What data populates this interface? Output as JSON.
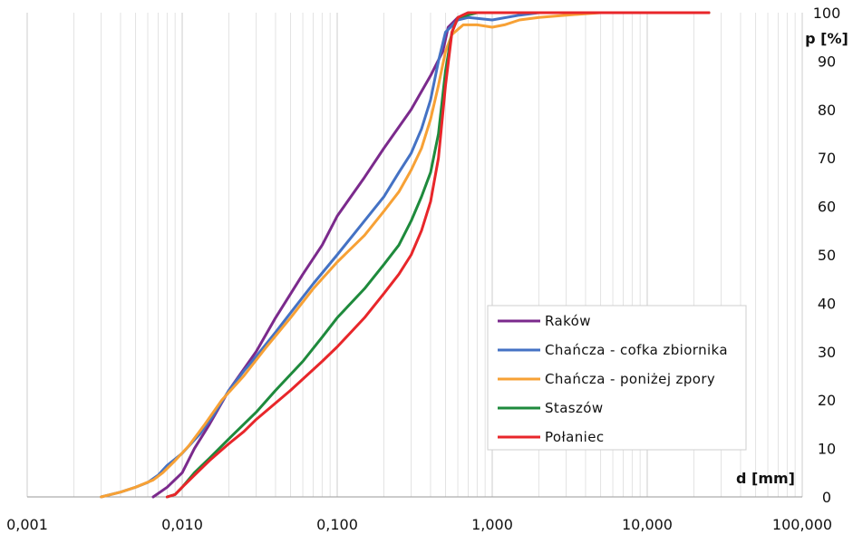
{
  "chart_data": {
    "type": "line",
    "x_scale": "log",
    "xlim": [
      0.001,
      100
    ],
    "ylim": [
      0,
      100
    ],
    "x_ticks": [
      {
        "value": 0.001,
        "label": "0,001"
      },
      {
        "value": 0.01,
        "label": "0,010"
      },
      {
        "value": 0.1,
        "label": "0,100"
      },
      {
        "value": 1,
        "label": "1,000"
      },
      {
        "value": 10,
        "label": "10,000"
      },
      {
        "value": 100,
        "label": "100,000"
      }
    ],
    "y_ticks": [
      0,
      10,
      20,
      30,
      40,
      50,
      60,
      70,
      80,
      90,
      100
    ],
    "xlabel": "d [mm]",
    "ylabel": "p [%]",
    "grid": "vertical minor log gridlines",
    "legend_position": "lower-right",
    "series": [
      {
        "name": "Raków",
        "color": "#7B2A8C",
        "points": [
          [
            0.0065,
            0
          ],
          [
            0.008,
            2
          ],
          [
            0.01,
            5
          ],
          [
            0.012,
            10
          ],
          [
            0.015,
            15
          ],
          [
            0.02,
            22
          ],
          [
            0.03,
            30
          ],
          [
            0.04,
            37
          ],
          [
            0.06,
            46
          ],
          [
            0.08,
            52
          ],
          [
            0.1,
            58
          ],
          [
            0.15,
            66
          ],
          [
            0.2,
            72
          ],
          [
            0.3,
            80
          ],
          [
            0.4,
            87
          ],
          [
            0.48,
            92
          ],
          [
            0.52,
            97
          ],
          [
            0.6,
            99
          ],
          [
            0.7,
            100
          ],
          [
            25,
            100
          ]
        ]
      },
      {
        "name": "Chańcza - cofka zbiornika",
        "color": "#4472C4",
        "points": [
          [
            0.003,
            0
          ],
          [
            0.004,
            1
          ],
          [
            0.005,
            2
          ],
          [
            0.006,
            3
          ],
          [
            0.007,
            4.5
          ],
          [
            0.008,
            6.5
          ],
          [
            0.01,
            9
          ],
          [
            0.013,
            13
          ],
          [
            0.016,
            17
          ],
          [
            0.02,
            22
          ],
          [
            0.025,
            26
          ],
          [
            0.03,
            29
          ],
          [
            0.04,
            34
          ],
          [
            0.05,
            38
          ],
          [
            0.07,
            44
          ],
          [
            0.1,
            50
          ],
          [
            0.15,
            57
          ],
          [
            0.2,
            62
          ],
          [
            0.25,
            67
          ],
          [
            0.3,
            71
          ],
          [
            0.35,
            76
          ],
          [
            0.4,
            82
          ],
          [
            0.45,
            90
          ],
          [
            0.5,
            96
          ],
          [
            0.6,
            98.5
          ],
          [
            0.7,
            99
          ],
          [
            1,
            98.5
          ],
          [
            1.5,
            99.5
          ],
          [
            2,
            100
          ],
          [
            25,
            100
          ]
        ]
      },
      {
        "name": "Chańcza - poniżej zpory",
        "color": "#F7A135",
        "points": [
          [
            0.003,
            0
          ],
          [
            0.004,
            1
          ],
          [
            0.005,
            2
          ],
          [
            0.0065,
            3.5
          ],
          [
            0.0075,
            5
          ],
          [
            0.009,
            7.5
          ],
          [
            0.011,
            10.5
          ],
          [
            0.014,
            15
          ],
          [
            0.018,
            20
          ],
          [
            0.025,
            25
          ],
          [
            0.035,
            31
          ],
          [
            0.05,
            37
          ],
          [
            0.07,
            43
          ],
          [
            0.1,
            48.5
          ],
          [
            0.15,
            54
          ],
          [
            0.2,
            59
          ],
          [
            0.25,
            63
          ],
          [
            0.3,
            67.5
          ],
          [
            0.35,
            72
          ],
          [
            0.4,
            78
          ],
          [
            0.45,
            85
          ],
          [
            0.5,
            92
          ],
          [
            0.55,
            95.5
          ],
          [
            0.65,
            97.5
          ],
          [
            0.8,
            97.5
          ],
          [
            1,
            97
          ],
          [
            1.2,
            97.5
          ],
          [
            1.5,
            98.5
          ],
          [
            2,
            99
          ],
          [
            3,
            99.5
          ],
          [
            5,
            100
          ],
          [
            25,
            100
          ]
        ]
      },
      {
        "name": "Staszów",
        "color": "#1E8A3C",
        "points": [
          [
            0.008,
            0
          ],
          [
            0.009,
            0.5
          ],
          [
            0.01,
            2
          ],
          [
            0.012,
            5
          ],
          [
            0.015,
            8
          ],
          [
            0.02,
            12
          ],
          [
            0.03,
            17.5
          ],
          [
            0.04,
            22
          ],
          [
            0.06,
            28
          ],
          [
            0.08,
            33
          ],
          [
            0.1,
            37
          ],
          [
            0.15,
            43
          ],
          [
            0.2,
            48
          ],
          [
            0.25,
            52
          ],
          [
            0.3,
            57
          ],
          [
            0.35,
            62
          ],
          [
            0.4,
            67
          ],
          [
            0.45,
            75
          ],
          [
            0.5,
            88
          ],
          [
            0.55,
            96
          ],
          [
            0.6,
            99
          ],
          [
            0.8,
            100
          ],
          [
            25,
            100
          ]
        ]
      },
      {
        "name": "Połaniec",
        "color": "#E8262A",
        "points": [
          [
            0.008,
            0
          ],
          [
            0.009,
            0.5
          ],
          [
            0.01,
            2
          ],
          [
            0.012,
            4.5
          ],
          [
            0.015,
            7.5
          ],
          [
            0.02,
            11
          ],
          [
            0.025,
            13.5
          ],
          [
            0.03,
            16
          ],
          [
            0.05,
            22
          ],
          [
            0.08,
            28
          ],
          [
            0.1,
            31
          ],
          [
            0.15,
            37
          ],
          [
            0.2,
            42
          ],
          [
            0.25,
            46
          ],
          [
            0.3,
            50
          ],
          [
            0.35,
            55
          ],
          [
            0.4,
            61
          ],
          [
            0.45,
            70
          ],
          [
            0.5,
            85
          ],
          [
            0.55,
            96
          ],
          [
            0.6,
            99
          ],
          [
            0.7,
            100
          ],
          [
            25,
            100
          ]
        ]
      }
    ]
  }
}
